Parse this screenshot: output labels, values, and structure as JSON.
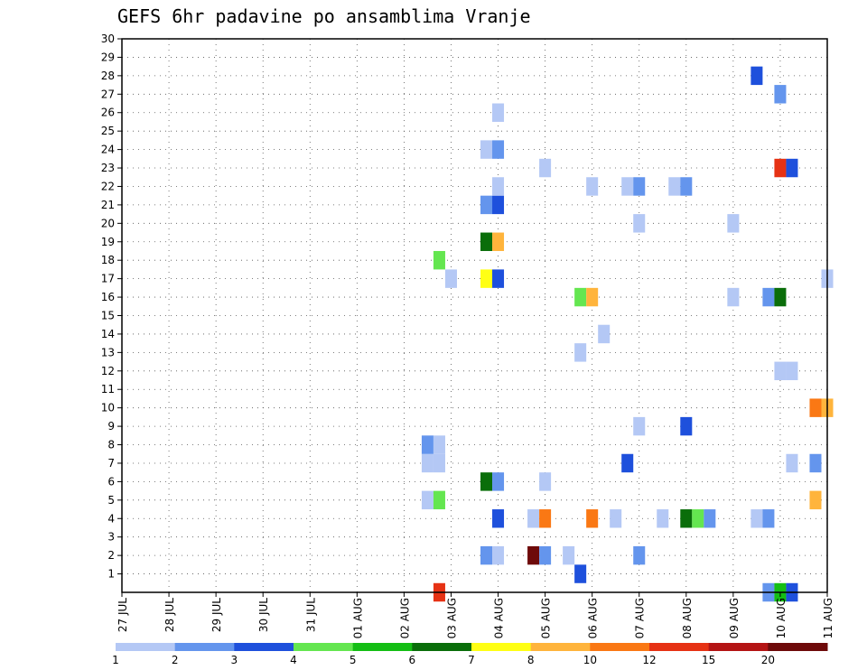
{
  "chart_data": {
    "type": "heatmap",
    "title": "GEFS 6hr padavine po ansamblima Vranje",
    "y_ticks": [
      "1",
      "2",
      "3",
      "4",
      "5",
      "6",
      "7",
      "8",
      "9",
      "10",
      "11",
      "12",
      "13",
      "14",
      "15",
      "16",
      "17",
      "18",
      "19",
      "20",
      "21",
      "22",
      "23",
      "24",
      "25",
      "26",
      "27",
      "28",
      "29",
      "30"
    ],
    "ylim": [
      0,
      30
    ],
    "x_ticks": [
      "27 JUL",
      "28 JUL",
      "29 JUL",
      "30 JUL",
      "31 JUL",
      "01 AUG",
      "02 AUG",
      "03 AUG",
      "04 AUG",
      "05 AUG",
      "06 AUG",
      "07 AUG",
      "08 AUG",
      "09 AUG",
      "10 AUG",
      "11 AUG"
    ],
    "xlim_days": [
      0,
      15
    ],
    "grid": true,
    "colorbar": {
      "labels": [
        "1",
        "2",
        "3",
        "4",
        "5",
        "6",
        "7",
        "8",
        "10",
        "12",
        "15",
        "20"
      ],
      "colors": [
        "#b4c8f5",
        "#6495ed",
        "#1e50dc",
        "#64e650",
        "#14be14",
        "#0a6e0a",
        "#ffff14",
        "#ffb43c",
        "#fa7814",
        "#e63214",
        "#b41414",
        "#6e0a0a"
      ]
    },
    "cells": [
      {
        "day": 6.75,
        "member": 0,
        "color": "#e63214"
      },
      {
        "day": 13.75,
        "member": 0,
        "color": "#6495ed"
      },
      {
        "day": 14.0,
        "member": 0,
        "color": "#14be14"
      },
      {
        "day": 14.25,
        "member": 0,
        "color": "#1e50dc"
      },
      {
        "day": 9.75,
        "member": 1,
        "color": "#1e50dc"
      },
      {
        "day": 7.75,
        "member": 2,
        "color": "#6495ed"
      },
      {
        "day": 8.0,
        "member": 2,
        "color": "#b4c8f5"
      },
      {
        "day": 8.75,
        "member": 2,
        "color": "#6e0a0a"
      },
      {
        "day": 9.0,
        "member": 2,
        "color": "#6495ed"
      },
      {
        "day": 9.5,
        "member": 2,
        "color": "#b4c8f5"
      },
      {
        "day": 11.0,
        "member": 2,
        "color": "#6495ed"
      },
      {
        "day": 8.0,
        "member": 4,
        "color": "#1e50dc"
      },
      {
        "day": 8.75,
        "member": 4,
        "color": "#b4c8f5"
      },
      {
        "day": 9.0,
        "member": 4,
        "color": "#fa7814"
      },
      {
        "day": 10.0,
        "member": 4,
        "color": "#fa7814"
      },
      {
        "day": 10.5,
        "member": 4,
        "color": "#b4c8f5"
      },
      {
        "day": 11.5,
        "member": 4,
        "color": "#b4c8f5"
      },
      {
        "day": 12.0,
        "member": 4,
        "color": "#0a6e0a"
      },
      {
        "day": 12.25,
        "member": 4,
        "color": "#64e650"
      },
      {
        "day": 12.5,
        "member": 4,
        "color": "#6495ed"
      },
      {
        "day": 13.5,
        "member": 4,
        "color": "#b4c8f5"
      },
      {
        "day": 13.75,
        "member": 4,
        "color": "#6495ed"
      },
      {
        "day": 6.5,
        "member": 5,
        "color": "#b4c8f5"
      },
      {
        "day": 6.75,
        "member": 5,
        "color": "#64e650"
      },
      {
        "day": 14.75,
        "member": 5,
        "color": "#ffb43c"
      },
      {
        "day": 7.75,
        "member": 6,
        "color": "#0a6e0a"
      },
      {
        "day": 8.0,
        "member": 6,
        "color": "#6495ed"
      },
      {
        "day": 9.0,
        "member": 6,
        "color": "#b4c8f5"
      },
      {
        "day": 6.5,
        "member": 7,
        "color": "#b4c8f5"
      },
      {
        "day": 6.75,
        "member": 7,
        "color": "#b4c8f5"
      },
      {
        "day": 10.75,
        "member": 7,
        "color": "#1e50dc"
      },
      {
        "day": 14.25,
        "member": 7,
        "color": "#b4c8f5"
      },
      {
        "day": 14.75,
        "member": 7,
        "color": "#6495ed"
      },
      {
        "day": 6.5,
        "member": 8,
        "color": "#6495ed"
      },
      {
        "day": 6.75,
        "member": 8,
        "color": "#b4c8f5"
      },
      {
        "day": 11.0,
        "member": 9,
        "color": "#b4c8f5"
      },
      {
        "day": 12.0,
        "member": 9,
        "color": "#1e50dc"
      },
      {
        "day": 14.75,
        "member": 10,
        "color": "#fa7814"
      },
      {
        "day": 15.0,
        "member": 10,
        "color": "#ffb43c"
      },
      {
        "day": 14.0,
        "member": 12,
        "color": "#b4c8f5"
      },
      {
        "day": 14.25,
        "member": 12,
        "color": "#b4c8f5"
      },
      {
        "day": 9.75,
        "member": 13,
        "color": "#b4c8f5"
      },
      {
        "day": 10.25,
        "member": 14,
        "color": "#b4c8f5"
      },
      {
        "day": 9.75,
        "member": 16,
        "color": "#64e650"
      },
      {
        "day": 10.0,
        "member": 16,
        "color": "#ffb43c"
      },
      {
        "day": 13.0,
        "member": 16,
        "color": "#b4c8f5"
      },
      {
        "day": 13.75,
        "member": 16,
        "color": "#6495ed"
      },
      {
        "day": 14.0,
        "member": 16,
        "color": "#0a6e0a"
      },
      {
        "day": 7.0,
        "member": 17,
        "color": "#b4c8f5"
      },
      {
        "day": 7.75,
        "member": 17,
        "color": "#ffff14"
      },
      {
        "day": 8.0,
        "member": 17,
        "color": "#1e50dc"
      },
      {
        "day": 15.0,
        "member": 17,
        "color": "#b4c8f5"
      },
      {
        "day": 6.75,
        "member": 18,
        "color": "#64e650"
      },
      {
        "day": 7.75,
        "member": 19,
        "color": "#0a6e0a"
      },
      {
        "day": 8.0,
        "member": 19,
        "color": "#ffb43c"
      },
      {
        "day": 11.0,
        "member": 20,
        "color": "#b4c8f5"
      },
      {
        "day": 13.0,
        "member": 20,
        "color": "#b4c8f5"
      },
      {
        "day": 7.75,
        "member": 21,
        "color": "#6495ed"
      },
      {
        "day": 8.0,
        "member": 21,
        "color": "#1e50dc"
      },
      {
        "day": 8.0,
        "member": 22,
        "color": "#b4c8f5"
      },
      {
        "day": 10.0,
        "member": 22,
        "color": "#b4c8f5"
      },
      {
        "day": 10.75,
        "member": 22,
        "color": "#b4c8f5"
      },
      {
        "day": 11.0,
        "member": 22,
        "color": "#6495ed"
      },
      {
        "day": 11.75,
        "member": 22,
        "color": "#b4c8f5"
      },
      {
        "day": 12.0,
        "member": 22,
        "color": "#6495ed"
      },
      {
        "day": 9.0,
        "member": 23,
        "color": "#b4c8f5"
      },
      {
        "day": 14.0,
        "member": 23,
        "color": "#e63214"
      },
      {
        "day": 14.25,
        "member": 23,
        "color": "#1e50dc"
      },
      {
        "day": 7.75,
        "member": 24,
        "color": "#b4c8f5"
      },
      {
        "day": 8.0,
        "member": 24,
        "color": "#6495ed"
      },
      {
        "day": 8.0,
        "member": 26,
        "color": "#b4c8f5"
      },
      {
        "day": 14.0,
        "member": 27,
        "color": "#6495ed"
      },
      {
        "day": 13.5,
        "member": 28,
        "color": "#1e50dc"
      }
    ]
  }
}
